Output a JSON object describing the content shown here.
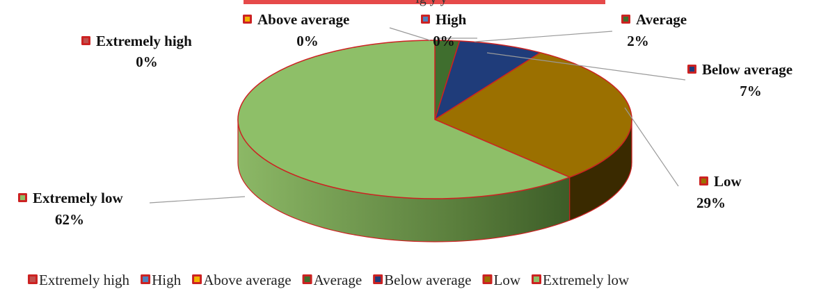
{
  "chart_data": {
    "type": "pie",
    "title": "",
    "style": "3d-pie",
    "legend_position": "bottom",
    "slices": [
      {
        "label": "Extremely high",
        "value": 0,
        "value_label": "0%",
        "color": "#c0504d"
      },
      {
        "label": "High",
        "value": 0,
        "value_label": "0%",
        "color": "#4f81bd"
      },
      {
        "label": "Above average",
        "value": 0,
        "value_label": "0%",
        "color": "#f0b400"
      },
      {
        "label": "Average",
        "value": 2,
        "value_label": "2%",
        "color": "#3f6e2e"
      },
      {
        "label": "Below average",
        "value": 7,
        "value_label": "7%",
        "color": "#1f3c7a"
      },
      {
        "label": "Low",
        "value": 29,
        "value_label": "29%",
        "color": "#9b7000"
      },
      {
        "label": "Extremely low",
        "value": 62,
        "value_label": "62%",
        "color": "#8ebf68"
      }
    ]
  },
  "header_fragment": "ig    y        y",
  "edge_color": "#cc2222"
}
